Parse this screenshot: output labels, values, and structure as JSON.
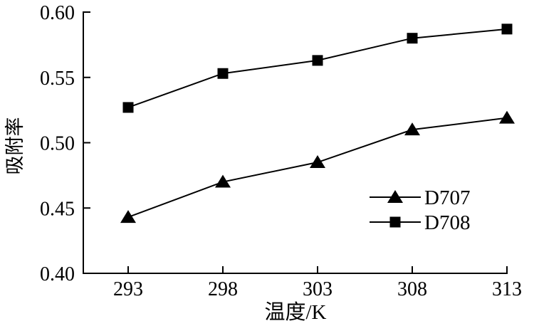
{
  "figure": {
    "background": "#ffffff",
    "ink_color": "#000000"
  },
  "chart_data": {
    "type": "line",
    "title": "",
    "xlabel": "温度/K",
    "ylabel": "吸附率",
    "x": [
      293,
      298,
      303,
      308,
      313
    ],
    "series": [
      {
        "name": "D707",
        "marker": "triangle",
        "values": [
          0.443,
          0.47,
          0.485,
          0.51,
          0.519
        ]
      },
      {
        "name": "D708",
        "marker": "square",
        "values": [
          0.527,
          0.553,
          0.563,
          0.58,
          0.587
        ]
      }
    ],
    "xlim": [
      293,
      313
    ],
    "ylim": [
      0.4,
      0.6
    ],
    "xtick_labels": [
      "293",
      "298",
      "303",
      "308",
      "313"
    ],
    "ytick_labels": [
      "0.40",
      "0.45",
      "0.50",
      "0.55",
      "0.60"
    ],
    "grid": false,
    "legend_position": "inside lower right",
    "legend_items": [
      "D707",
      "D708"
    ]
  }
}
